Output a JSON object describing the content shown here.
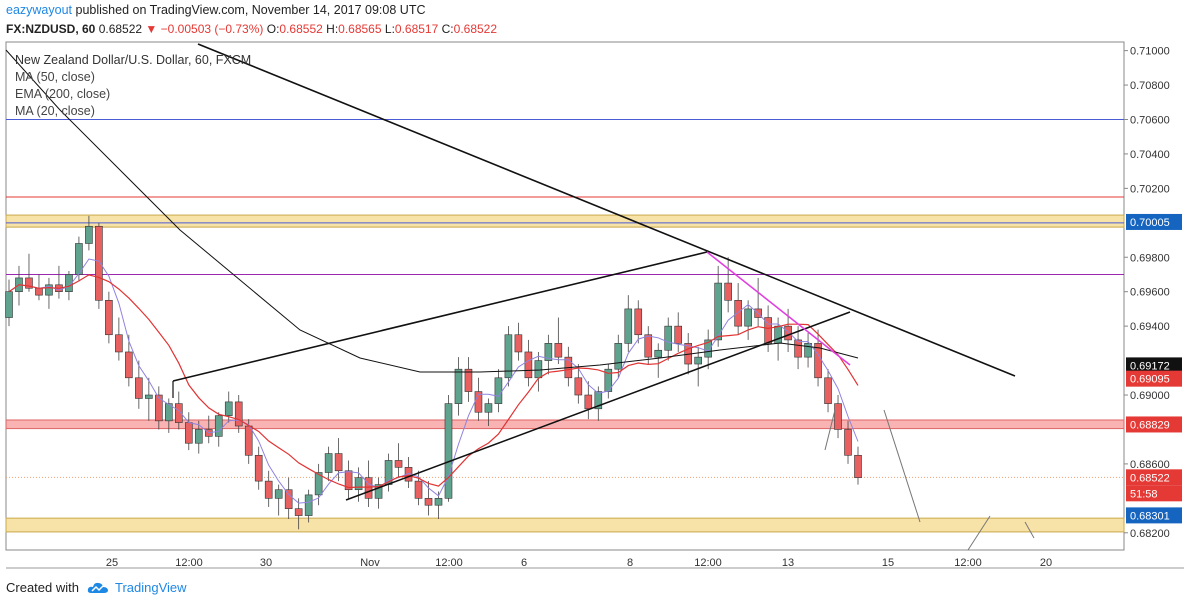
{
  "header": {
    "author": "eazywayout",
    "published_text": "published on TradingView.com, November 14, 2017 09:08 UTC",
    "symbol": "FX:NZDUSD, 60",
    "last": "0.68522",
    "change": "−0.00503 (−0.73%)",
    "open_label": "O:",
    "open": "0.68552",
    "high_label": "H:",
    "high": "0.68565",
    "low_label": "L:",
    "low": "0.68517",
    "close_label": "C:",
    "close": "0.68522"
  },
  "legend": {
    "title": "New Zealand Dollar/U.S. Dollar, 60, FXCM",
    "items": [
      "MA (50, close)",
      "EMA (200, close)",
      "MA (20, close)"
    ]
  },
  "footer": {
    "created_with": "Created with",
    "brand": "TradingView"
  },
  "colors": {
    "up": "#5fa38f",
    "down": "#e86060",
    "ma50": "#111111",
    "ema200": "#e23333",
    "ma20": "#8f83e0",
    "price_label_blue": "#1565c0",
    "price_label_red": "#e53935",
    "zone_gold": "#f7e2a8",
    "zone_red": "#f9b3b3",
    "pink_trend": "#e040e0"
  },
  "chart_data": {
    "type": "candlestick",
    "symbol": "NZDUSD",
    "timeframe": "60",
    "y_axis": {
      "min": 0.681,
      "max": 0.7105,
      "ticks": [
        "0.71000",
        "0.70800",
        "0.70600",
        "0.70400",
        "0.70200",
        "0.70005",
        "0.69800",
        "0.69600",
        "0.69400",
        "0.69172",
        "0.69095",
        "0.69000",
        "0.68829",
        "0.68600",
        "0.68522",
        "0.68301",
        "0.68200"
      ]
    },
    "x_axis_ticks": [
      "25",
      "12:00",
      "30",
      "Nov",
      "12:00",
      "6",
      "8",
      "12:00",
      "13",
      "15",
      "12:00",
      "20"
    ],
    "price_labels": [
      {
        "value": "0.70005",
        "color": "blue"
      },
      {
        "value": "0.69172",
        "color": "dark"
      },
      {
        "value": "0.69095",
        "color": "red"
      },
      {
        "value": "0.68829",
        "color": "red"
      },
      {
        "value": "0.68522",
        "color": "red"
      },
      {
        "value": "51:58",
        "color": "red"
      },
      {
        "value": "0.68301",
        "color": "blue"
      }
    ],
    "zones": [
      {
        "from": 0.69975,
        "to": 0.70045,
        "color": "gold"
      },
      {
        "from": 0.68805,
        "to": 0.68855,
        "color": "red"
      },
      {
        "from": 0.68205,
        "to": 0.68285,
        "color": "gold"
      }
    ],
    "horizontal_lines": [
      {
        "value": 0.706,
        "color": "blue"
      },
      {
        "value": 0.7015,
        "color": "red"
      },
      {
        "value": 0.7,
        "color": "blue"
      },
      {
        "value": 0.697,
        "color": "purple"
      },
      {
        "value": 0.68522,
        "color": "orange-dotted"
      }
    ],
    "candles_approx": [
      [
        0.6945,
        0.6967,
        0.694,
        0.696
      ],
      [
        0.696,
        0.6975,
        0.6952,
        0.6968
      ],
      [
        0.6968,
        0.6982,
        0.696,
        0.6962
      ],
      [
        0.6962,
        0.697,
        0.6955,
        0.6958
      ],
      [
        0.6958,
        0.6968,
        0.695,
        0.6964
      ],
      [
        0.6964,
        0.6975,
        0.6956,
        0.696
      ],
      [
        0.696,
        0.6972,
        0.6955,
        0.697
      ],
      [
        0.697,
        0.6992,
        0.6966,
        0.6988
      ],
      [
        0.6988,
        0.7004,
        0.6984,
        0.6998
      ],
      [
        0.6998,
        0.7,
        0.695,
        0.6955
      ],
      [
        0.6955,
        0.696,
        0.693,
        0.6935
      ],
      [
        0.6935,
        0.6945,
        0.692,
        0.6925
      ],
      [
        0.6925,
        0.6935,
        0.6905,
        0.691
      ],
      [
        0.691,
        0.692,
        0.6892,
        0.6898
      ],
      [
        0.6898,
        0.691,
        0.6885,
        0.69
      ],
      [
        0.69,
        0.6905,
        0.688,
        0.6885
      ],
      [
        0.6885,
        0.6898,
        0.6878,
        0.6895
      ],
      [
        0.6895,
        0.6902,
        0.688,
        0.6884
      ],
      [
        0.6884,
        0.689,
        0.6868,
        0.6872
      ],
      [
        0.6872,
        0.6885,
        0.6866,
        0.688
      ],
      [
        0.688,
        0.6888,
        0.6872,
        0.6876
      ],
      [
        0.6876,
        0.689,
        0.687,
        0.6888
      ],
      [
        0.6888,
        0.6902,
        0.6884,
        0.6896
      ],
      [
        0.6896,
        0.69,
        0.6878,
        0.6882
      ],
      [
        0.6882,
        0.6886,
        0.686,
        0.6865
      ],
      [
        0.6865,
        0.687,
        0.6845,
        0.685
      ],
      [
        0.685,
        0.6856,
        0.6835,
        0.684
      ],
      [
        0.684,
        0.6848,
        0.683,
        0.6845
      ],
      [
        0.6845,
        0.6852,
        0.6828,
        0.6834
      ],
      [
        0.6834,
        0.684,
        0.6822,
        0.683
      ],
      [
        0.683,
        0.6845,
        0.6826,
        0.6842
      ],
      [
        0.6842,
        0.686,
        0.6836,
        0.6855
      ],
      [
        0.6855,
        0.687,
        0.685,
        0.6866
      ],
      [
        0.6866,
        0.6875,
        0.685,
        0.6856
      ],
      [
        0.6856,
        0.6862,
        0.684,
        0.6845
      ],
      [
        0.6845,
        0.6858,
        0.6838,
        0.6852
      ],
      [
        0.6852,
        0.6862,
        0.6835,
        0.684
      ],
      [
        0.684,
        0.6852,
        0.6834,
        0.6848
      ],
      [
        0.6848,
        0.6866,
        0.6844,
        0.6862
      ],
      [
        0.6862,
        0.6872,
        0.6852,
        0.6858
      ],
      [
        0.6858,
        0.6864,
        0.6846,
        0.685
      ],
      [
        0.685,
        0.6856,
        0.6836,
        0.684
      ],
      [
        0.684,
        0.685,
        0.683,
        0.6836
      ],
      [
        0.6836,
        0.6844,
        0.6828,
        0.684
      ],
      [
        0.684,
        0.69,
        0.6838,
        0.6895
      ],
      [
        0.6895,
        0.6922,
        0.6888,
        0.6915
      ],
      [
        0.6915,
        0.6922,
        0.6896,
        0.6902
      ],
      [
        0.6902,
        0.691,
        0.6885,
        0.689
      ],
      [
        0.689,
        0.6898,
        0.6882,
        0.6895
      ],
      [
        0.6895,
        0.6915,
        0.689,
        0.691
      ],
      [
        0.691,
        0.694,
        0.6905,
        0.6935
      ],
      [
        0.6935,
        0.6942,
        0.692,
        0.6925
      ],
      [
        0.6925,
        0.6932,
        0.6905,
        0.691
      ],
      [
        0.691,
        0.6925,
        0.6902,
        0.692
      ],
      [
        0.692,
        0.6935,
        0.6912,
        0.693
      ],
      [
        0.693,
        0.6945,
        0.6918,
        0.6922
      ],
      [
        0.6922,
        0.6928,
        0.6905,
        0.691
      ],
      [
        0.691,
        0.6918,
        0.6895,
        0.69
      ],
      [
        0.69,
        0.6908,
        0.6886,
        0.6892
      ],
      [
        0.6892,
        0.6905,
        0.6885,
        0.6902
      ],
      [
        0.6902,
        0.6918,
        0.6898,
        0.6915
      ],
      [
        0.6915,
        0.6935,
        0.691,
        0.693
      ],
      [
        0.693,
        0.6958,
        0.6925,
        0.695
      ],
      [
        0.695,
        0.6955,
        0.693,
        0.6935
      ],
      [
        0.6935,
        0.694,
        0.6918,
        0.6922
      ],
      [
        0.6922,
        0.693,
        0.691,
        0.6926
      ],
      [
        0.6926,
        0.6945,
        0.692,
        0.694
      ],
      [
        0.694,
        0.6948,
        0.6925,
        0.693
      ],
      [
        0.693,
        0.6936,
        0.6912,
        0.6918
      ],
      [
        0.6918,
        0.6928,
        0.6905,
        0.6922
      ],
      [
        0.6922,
        0.6938,
        0.6915,
        0.6932
      ],
      [
        0.6932,
        0.6975,
        0.6928,
        0.6965
      ],
      [
        0.6965,
        0.698,
        0.6948,
        0.6955
      ],
      [
        0.6955,
        0.6965,
        0.6935,
        0.694
      ],
      [
        0.694,
        0.6955,
        0.6932,
        0.695
      ],
      [
        0.695,
        0.6968,
        0.694,
        0.6945
      ],
      [
        0.6945,
        0.6952,
        0.6925,
        0.693
      ],
      [
        0.693,
        0.6945,
        0.692,
        0.694
      ],
      [
        0.694,
        0.695,
        0.6925,
        0.6932
      ],
      [
        0.6932,
        0.694,
        0.6915,
        0.6922
      ],
      [
        0.6922,
        0.6936,
        0.6916,
        0.693
      ],
      [
        0.693,
        0.6938,
        0.6905,
        0.691
      ],
      [
        0.691,
        0.6915,
        0.689,
        0.6895
      ],
      [
        0.6895,
        0.69,
        0.6875,
        0.688
      ],
      [
        0.688,
        0.6885,
        0.686,
        0.6865
      ],
      [
        0.6865,
        0.687,
        0.6848,
        0.6852
      ]
    ]
  }
}
